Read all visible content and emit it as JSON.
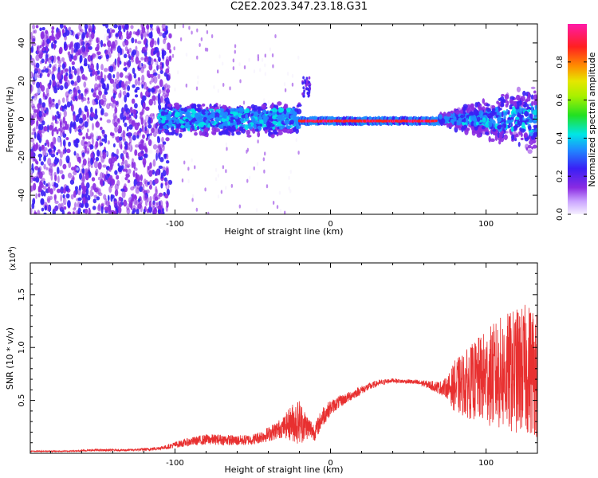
{
  "figure_title": "C2E2.2023.347.23.18.G31",
  "chart_data": [
    {
      "type": "heatmap",
      "title": "C2E2.2023.347.23.18.G31",
      "xlabel": "Height of straight line (km)",
      "ylabel": "Frequency (Hz)",
      "xlim": [
        -193,
        133
      ],
      "ylim": [
        -50,
        50
      ],
      "x_ticks": [
        -100,
        0,
        100
      ],
      "y_ticks": [
        -40,
        -20,
        0,
        20,
        40
      ],
      "colorbar": {
        "label": "Normalized spectral amplitude",
        "range": [
          0.0,
          1.0
        ],
        "ticks": [
          0.0,
          0.2,
          0.4,
          0.6,
          0.8
        ],
        "colormap": "rainbow (white/lavender → violet → blue → cyan → green → yellow → orange → red → magenta)",
        "colors": [
          "#f4eefe",
          "#8a2be2",
          "#3a1ff5",
          "#1f8cff",
          "#00e6e6",
          "#22e022",
          "#e6e600",
          "#ff8c00",
          "#ff2020",
          "#ff1aa8"
        ]
      },
      "regions": [
        {
          "x_range": [
            -193,
            -105
          ],
          "y_range": [
            -50,
            50
          ],
          "description_value": "scattered noise, amplitude 0.1–0.3"
        },
        {
          "x_range": [
            -110,
            -20
          ],
          "y_range": [
            -12,
            10
          ],
          "description_value": "band centred near 0 Hz, amplitude 0.2–0.45"
        },
        {
          "x_range": [
            -20,
            70
          ],
          "y_range": [
            -3,
            2
          ],
          "description_value": "narrow line near -1 Hz, amplitude 0.8–1.0"
        },
        {
          "x_range": [
            70,
            133
          ],
          "y_range": [
            -20,
            20
          ],
          "description_value": "widening band, amplitude 0.2–0.5"
        }
      ]
    },
    {
      "type": "line",
      "xlabel": "Height of straight line (km)",
      "ylabel": "SNR (10 * v/v)",
      "y_scale_label": "(x10",
      "y_scale_exp": "4",
      "y_scale_close": ")",
      "xlim": [
        -193,
        133
      ],
      "ylim": [
        0,
        1.8
      ],
      "x_ticks": [
        -100,
        0,
        100
      ],
      "y_ticks": [
        0.5,
        1.0,
        1.5
      ],
      "y_tick_labels": [
        "0.5",
        "1.0",
        "1.5"
      ],
      "color": "#e83030",
      "series": [
        {
          "x": [
            -193,
            -170,
            -150,
            -130,
            -115,
            -105,
            -100,
            -90,
            -80,
            -70,
            -60,
            -50,
            -40,
            -30,
            -25,
            -20,
            -15,
            -10,
            -5,
            0,
            5,
            10,
            20,
            30,
            40,
            45,
            50,
            60,
            70,
            75,
            80,
            90,
            100,
            110,
            120,
            133
          ],
          "y": [
            0.02,
            0.02,
            0.03,
            0.03,
            0.04,
            0.06,
            0.08,
            0.11,
            0.13,
            0.13,
            0.12,
            0.13,
            0.18,
            0.25,
            0.29,
            0.3,
            0.25,
            0.2,
            0.35,
            0.43,
            0.48,
            0.52,
            0.6,
            0.66,
            0.69,
            0.68,
            0.68,
            0.66,
            0.62,
            0.62,
            0.63,
            0.67,
            0.72,
            0.75,
            0.78,
            0.8
          ],
          "amplitude": [
            0.005,
            0.005,
            0.01,
            0.01,
            0.015,
            0.02,
            0.03,
            0.04,
            0.05,
            0.05,
            0.05,
            0.05,
            0.07,
            0.1,
            0.18,
            0.22,
            0.12,
            0.08,
            0.1,
            0.07,
            0.06,
            0.05,
            0.04,
            0.03,
            0.02,
            0.02,
            0.02,
            0.03,
            0.06,
            0.1,
            0.25,
            0.35,
            0.45,
            0.55,
            0.6,
            0.65
          ]
        }
      ]
    }
  ]
}
